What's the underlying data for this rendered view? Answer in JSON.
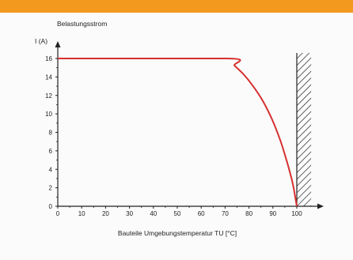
{
  "header": {
    "accent_color": "#f39a1e"
  },
  "chart_data": {
    "type": "line",
    "title": "Belastungsstrom",
    "ylabel": "I (A)",
    "xlabel": "Bauteile Umgebungstemperatur TU [°C]",
    "xlim": [
      0,
      100
    ],
    "ylim": [
      0,
      16
    ],
    "x_ticks": [
      0,
      10,
      20,
      30,
      40,
      50,
      60,
      70,
      80,
      90,
      100
    ],
    "y_ticks": [
      0,
      2,
      4,
      6,
      8,
      10,
      12,
      14,
      16
    ],
    "grid": false,
    "series": [
      {
        "color": "#d62f2f",
        "points": [
          {
            "x": 0,
            "y": 16
          },
          {
            "x": 70,
            "y": 16
          },
          {
            "x": 74,
            "y": 15.2
          },
          {
            "x": 78,
            "y": 14.2
          },
          {
            "x": 82,
            "y": 12.9
          },
          {
            "x": 86,
            "y": 11.3
          },
          {
            "x": 90,
            "y": 9.2
          },
          {
            "x": 93,
            "y": 7.2
          },
          {
            "x": 95,
            "y": 5.6
          },
          {
            "x": 97,
            "y": 3.8
          },
          {
            "x": 98.5,
            "y": 2.2
          },
          {
            "x": 100,
            "y": 0
          }
        ]
      }
    ],
    "hatched_region": {
      "x_from": 100,
      "x_to": 106
    }
  }
}
